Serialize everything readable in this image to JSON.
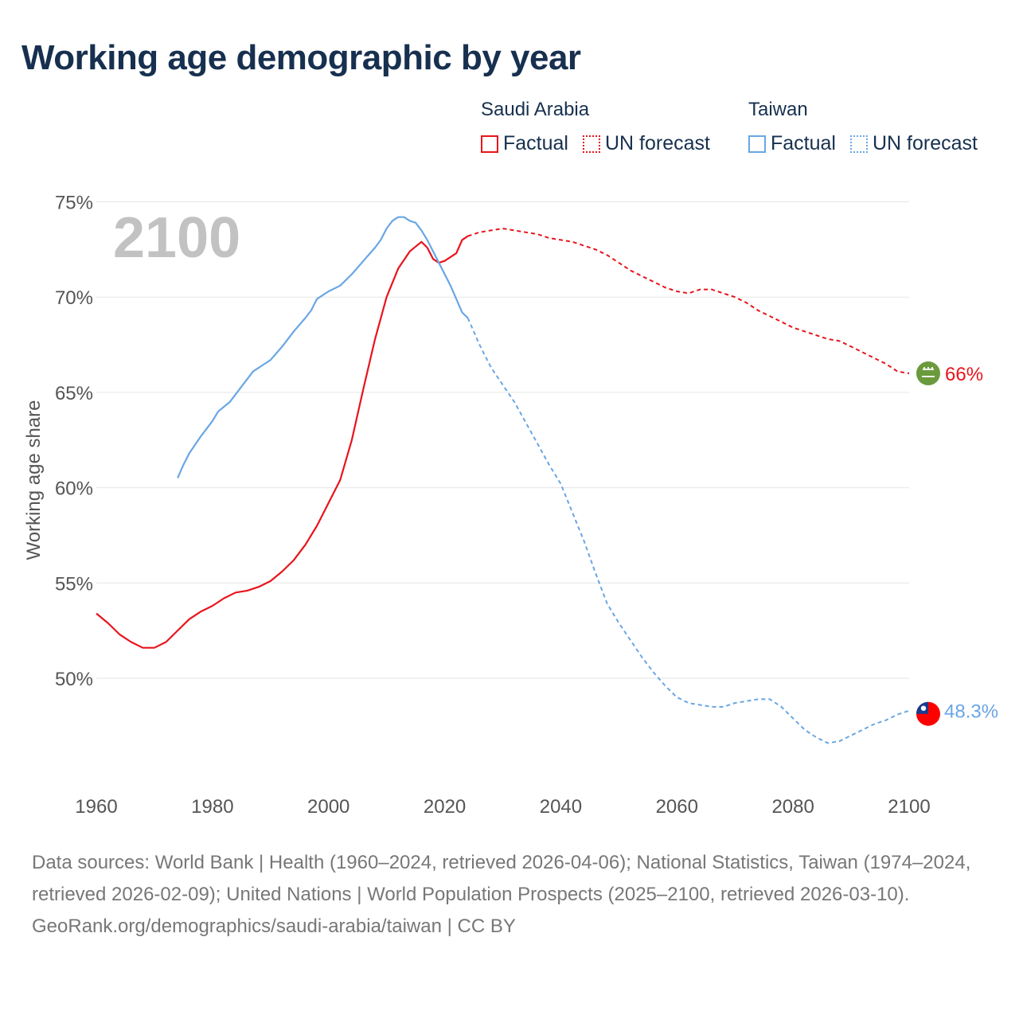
{
  "title": "Working age demographic by year",
  "legend": {
    "groups": [
      {
        "name": "Saudi Arabia",
        "color": "#e8141c",
        "factual": "Factual",
        "forecast": "UN forecast"
      },
      {
        "name": "Taiwan",
        "color": "#6aa6e4",
        "factual": "Factual",
        "forecast": "UN forecast"
      }
    ]
  },
  "chart_data": {
    "type": "line",
    "title": "Working age demographic by year",
    "xlabel": "",
    "ylabel": "Working age share",
    "xlim": [
      1960,
      2100
    ],
    "ylim": [
      44,
      76
    ],
    "x_ticks": [
      1960,
      1980,
      2000,
      2020,
      2040,
      2060,
      2080,
      2100
    ],
    "x_tick_labels": [
      "1960",
      "1980",
      "2000",
      "2020",
      "2040",
      "2060",
      "2080",
      "2100"
    ],
    "y_ticks": [
      50,
      55,
      60,
      65,
      70,
      75
    ],
    "y_tick_labels": [
      "50%",
      "55%",
      "60%",
      "65%",
      "70%",
      "75%"
    ],
    "year_watermark": "2100",
    "forecast_start": 2024,
    "series": [
      {
        "name": "Saudi Arabia",
        "color": "#e8141c",
        "end_label": "66%",
        "points": [
          [
            1960,
            53.4
          ],
          [
            1962,
            52.9
          ],
          [
            1964,
            52.3
          ],
          [
            1966,
            51.9
          ],
          [
            1968,
            51.6
          ],
          [
            1970,
            51.6
          ],
          [
            1972,
            51.9
          ],
          [
            1974,
            52.5
          ],
          [
            1976,
            53.1
          ],
          [
            1978,
            53.5
          ],
          [
            1980,
            53.8
          ],
          [
            1982,
            54.2
          ],
          [
            1984,
            54.5
          ],
          [
            1986,
            54.6
          ],
          [
            1988,
            54.8
          ],
          [
            1990,
            55.1
          ],
          [
            1992,
            55.6
          ],
          [
            1994,
            56.2
          ],
          [
            1996,
            57.0
          ],
          [
            1998,
            58.0
          ],
          [
            2000,
            59.2
          ],
          [
            2002,
            60.4
          ],
          [
            2004,
            62.5
          ],
          [
            2006,
            65.2
          ],
          [
            2008,
            67.8
          ],
          [
            2010,
            70.0
          ],
          [
            2012,
            71.5
          ],
          [
            2014,
            72.4
          ],
          [
            2016,
            72.9
          ],
          [
            2017,
            72.6
          ],
          [
            2018,
            72.0
          ],
          [
            2019,
            71.8
          ],
          [
            2020,
            71.9
          ],
          [
            2022,
            72.3
          ],
          [
            2023,
            73.0
          ],
          [
            2024,
            73.2
          ],
          [
            2026,
            73.4
          ],
          [
            2028,
            73.5
          ],
          [
            2030,
            73.6
          ],
          [
            2032,
            73.5
          ],
          [
            2034,
            73.4
          ],
          [
            2036,
            73.3
          ],
          [
            2038,
            73.1
          ],
          [
            2040,
            73.0
          ],
          [
            2042,
            72.9
          ],
          [
            2044,
            72.7
          ],
          [
            2046,
            72.5
          ],
          [
            2048,
            72.2
          ],
          [
            2050,
            71.8
          ],
          [
            2052,
            71.4
          ],
          [
            2054,
            71.1
          ],
          [
            2056,
            70.8
          ],
          [
            2058,
            70.5
          ],
          [
            2060,
            70.3
          ],
          [
            2062,
            70.2
          ],
          [
            2064,
            70.4
          ],
          [
            2066,
            70.4
          ],
          [
            2068,
            70.2
          ],
          [
            2070,
            70.0
          ],
          [
            2072,
            69.7
          ],
          [
            2074,
            69.3
          ],
          [
            2076,
            69.0
          ],
          [
            2078,
            68.7
          ],
          [
            2080,
            68.4
          ],
          [
            2082,
            68.2
          ],
          [
            2084,
            68.0
          ],
          [
            2086,
            67.8
          ],
          [
            2088,
            67.7
          ],
          [
            2090,
            67.4
          ],
          [
            2092,
            67.1
          ],
          [
            2094,
            66.8
          ],
          [
            2096,
            66.5
          ],
          [
            2098,
            66.1
          ],
          [
            2100,
            66.0
          ]
        ]
      },
      {
        "name": "Taiwan",
        "color": "#6aa6e4",
        "end_label": "48.3%",
        "points": [
          [
            1974,
            60.5
          ],
          [
            1975,
            61.2
          ],
          [
            1976,
            61.8
          ],
          [
            1978,
            62.7
          ],
          [
            1980,
            63.5
          ],
          [
            1981,
            64.0
          ],
          [
            1983,
            64.5
          ],
          [
            1985,
            65.3
          ],
          [
            1987,
            66.1
          ],
          [
            1989,
            66.5
          ],
          [
            1990,
            66.7
          ],
          [
            1992,
            67.4
          ],
          [
            1994,
            68.2
          ],
          [
            1996,
            68.9
          ],
          [
            1997,
            69.3
          ],
          [
            1998,
            69.9
          ],
          [
            2000,
            70.3
          ],
          [
            2002,
            70.6
          ],
          [
            2004,
            71.2
          ],
          [
            2006,
            71.9
          ],
          [
            2008,
            72.6
          ],
          [
            2009,
            73.0
          ],
          [
            2010,
            73.6
          ],
          [
            2011,
            74.0
          ],
          [
            2012,
            74.2
          ],
          [
            2013,
            74.2
          ],
          [
            2014,
            74.0
          ],
          [
            2015,
            73.9
          ],
          [
            2016,
            73.5
          ],
          [
            2017,
            73.0
          ],
          [
            2018,
            72.4
          ],
          [
            2019,
            71.8
          ],
          [
            2020,
            71.2
          ],
          [
            2021,
            70.6
          ],
          [
            2022,
            69.9
          ],
          [
            2023,
            69.2
          ],
          [
            2024,
            68.9
          ],
          [
            2026,
            67.5
          ],
          [
            2028,
            66.3
          ],
          [
            2030,
            65.4
          ],
          [
            2032,
            64.5
          ],
          [
            2034,
            63.4
          ],
          [
            2036,
            62.3
          ],
          [
            2038,
            61.2
          ],
          [
            2040,
            60.2
          ],
          [
            2042,
            58.7
          ],
          [
            2044,
            57.2
          ],
          [
            2046,
            55.5
          ],
          [
            2048,
            53.9
          ],
          [
            2050,
            52.9
          ],
          [
            2052,
            52.0
          ],
          [
            2054,
            51.1
          ],
          [
            2056,
            50.3
          ],
          [
            2058,
            49.6
          ],
          [
            2060,
            49.0
          ],
          [
            2062,
            48.7
          ],
          [
            2064,
            48.6
          ],
          [
            2066,
            48.5
          ],
          [
            2068,
            48.5
          ],
          [
            2070,
            48.7
          ],
          [
            2072,
            48.8
          ],
          [
            2074,
            48.9
          ],
          [
            2076,
            48.9
          ],
          [
            2078,
            48.5
          ],
          [
            2080,
            47.9
          ],
          [
            2082,
            47.3
          ],
          [
            2084,
            46.9
          ],
          [
            2086,
            46.6
          ],
          [
            2088,
            46.7
          ],
          [
            2090,
            47.0
          ],
          [
            2092,
            47.3
          ],
          [
            2094,
            47.6
          ],
          [
            2096,
            47.8
          ],
          [
            2098,
            48.1
          ],
          [
            2100,
            48.3
          ]
        ]
      }
    ]
  },
  "footer": {
    "sources": "Data sources: World Bank | Health (1960–2024, retrieved 2026-04-06); National Statistics, Taiwan (1974–2024, retrieved 2026-02-09); United Nations | World Population Prospects (2025–2100, retrieved 2026-03-10).",
    "credit": "GeoRank.org/demographics/saudi-arabia/taiwan | CC BY"
  },
  "colors": {
    "title": "#17304f",
    "grid": "#e6e6e6",
    "tick_text": "#555555",
    "watermark": "#c2c2c2",
    "saudi_flag": "#6b9a3d",
    "taiwan_flag_red": "#fe0000",
    "taiwan_flag_blue": "#1a3b8f"
  },
  "icons": [
    "saudi-arabia-flag-icon",
    "taiwan-flag-icon"
  ]
}
